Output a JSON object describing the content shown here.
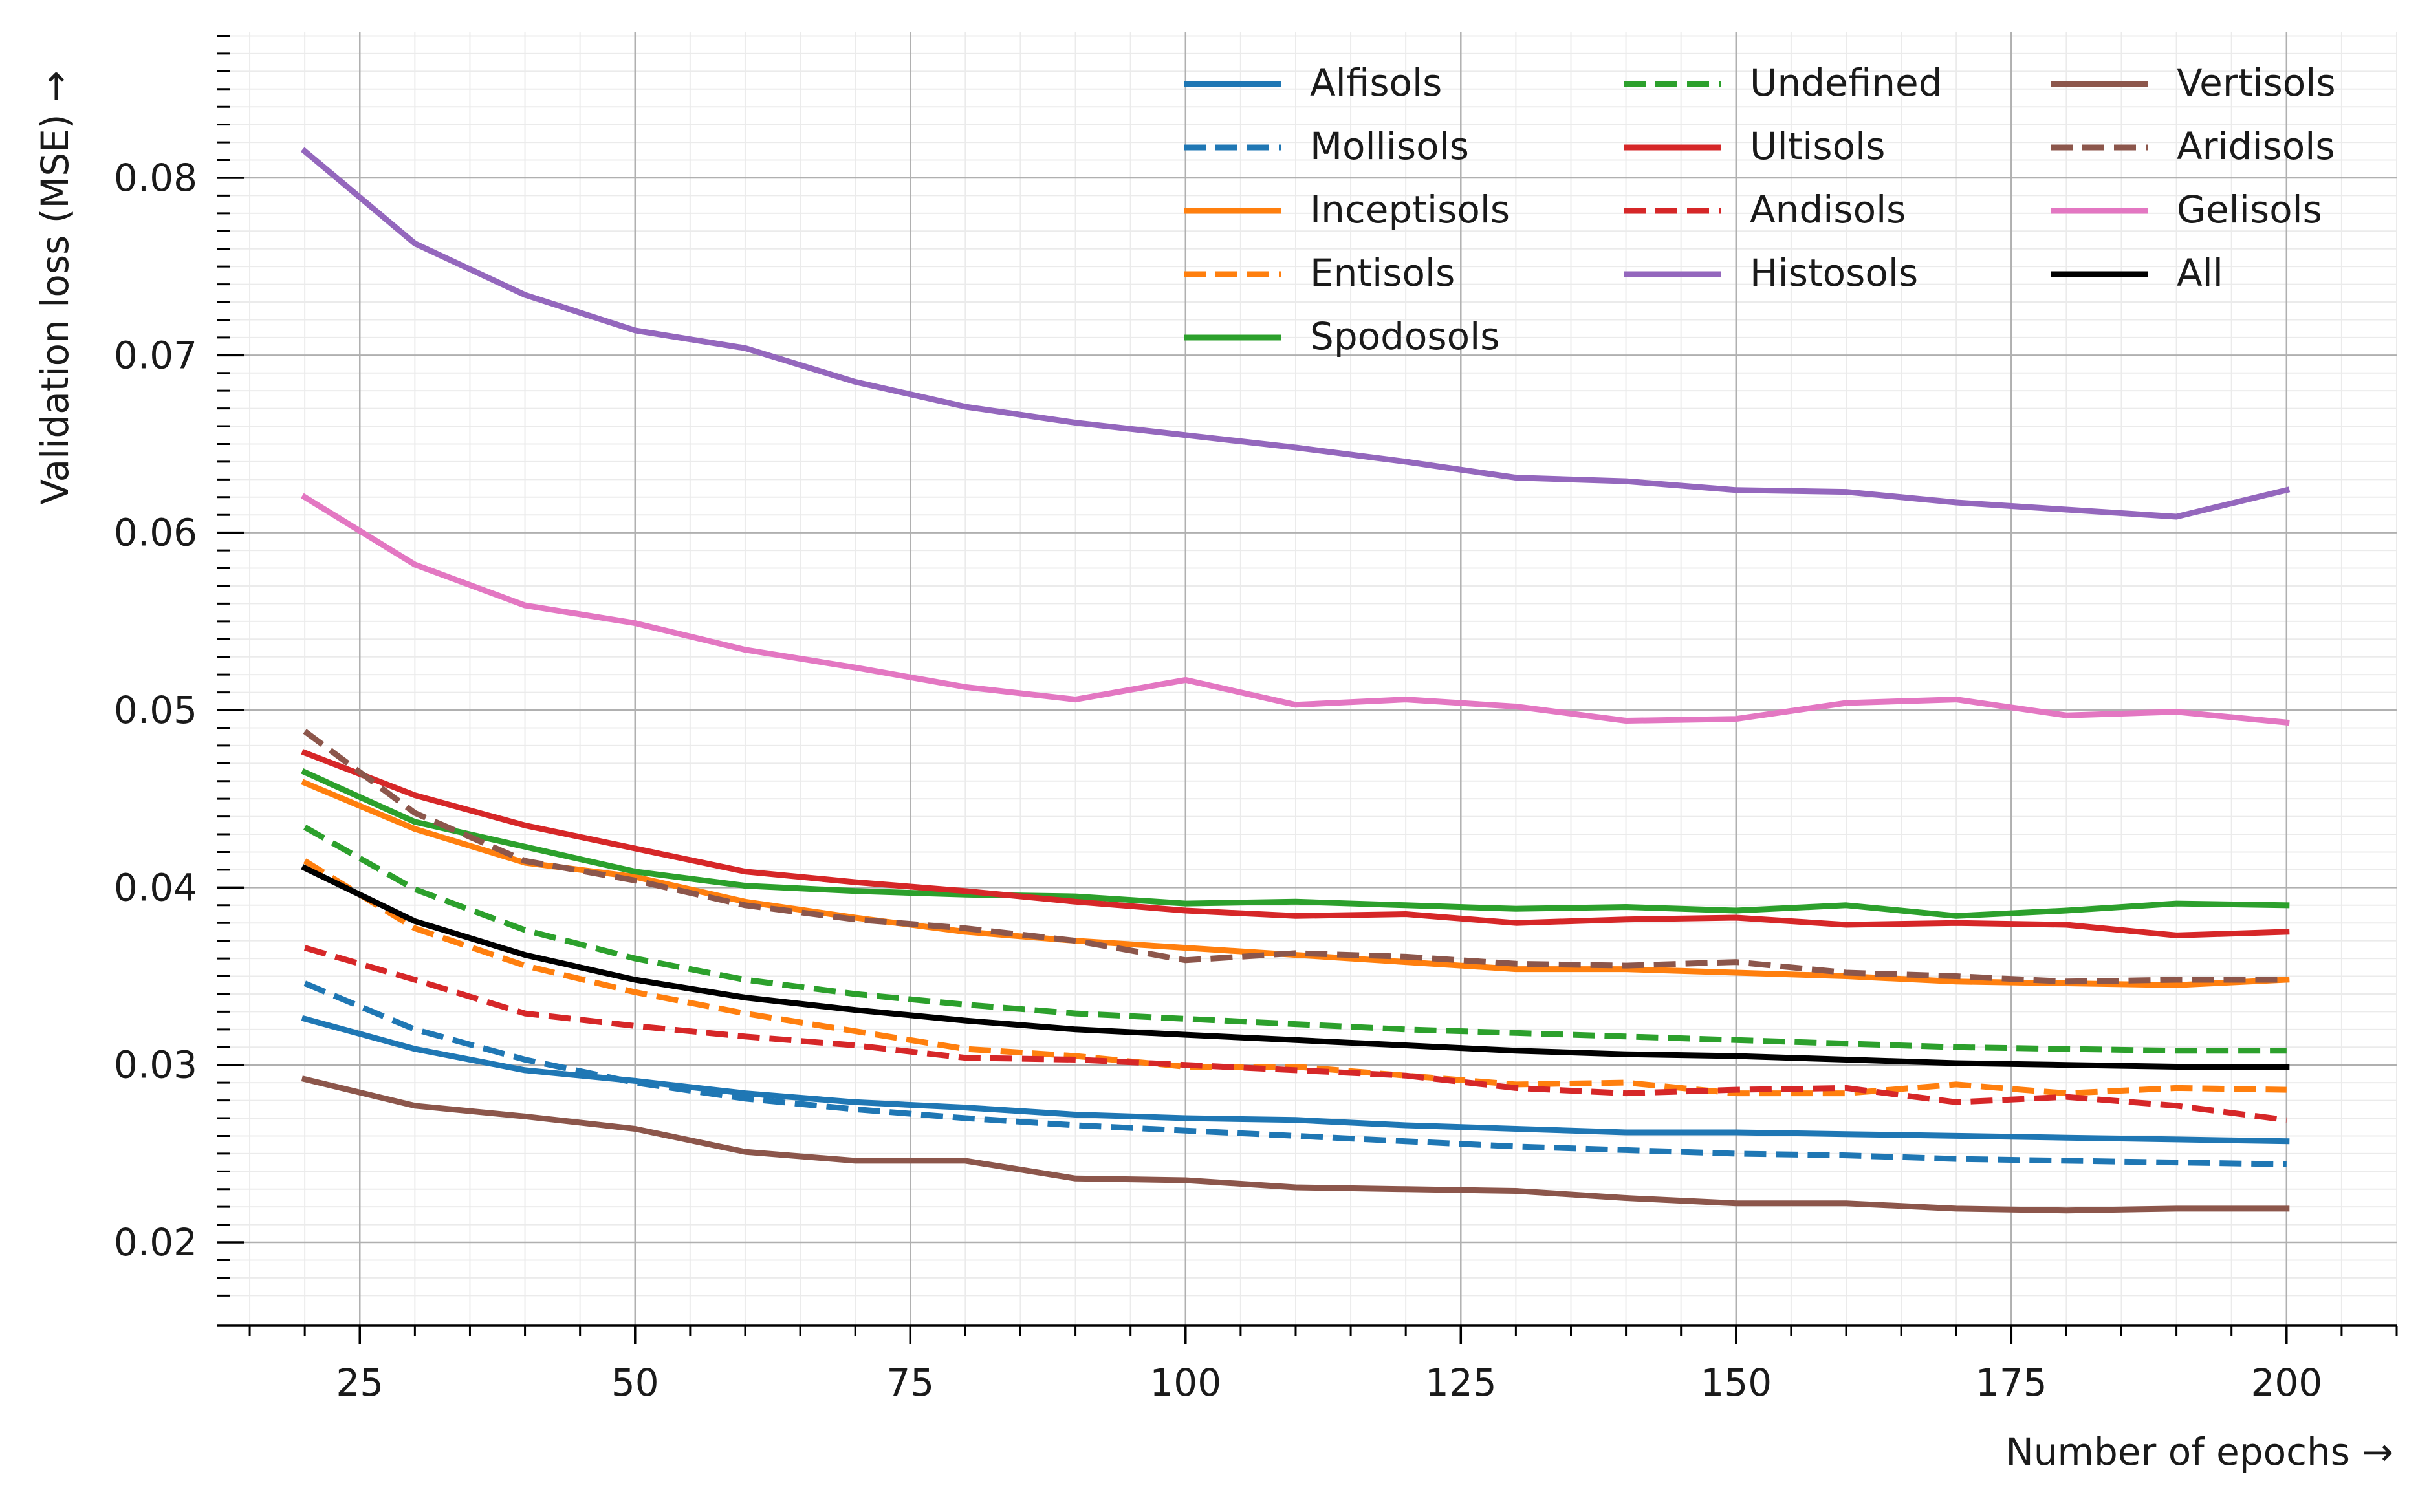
{
  "chart_data": {
    "type": "line",
    "title": "",
    "xlabel": "Number of epochs →",
    "ylabel": "Validation loss (MSE) →",
    "xlim": [
      12,
      210
    ],
    "ylim": [
      0.0153,
      0.0882
    ],
    "xticks": [
      25,
      50,
      75,
      100,
      125,
      150,
      175,
      200
    ],
    "xtick_labels": [
      "25",
      "50",
      "75",
      "100",
      "125",
      "150",
      "175",
      "200"
    ],
    "yticks": [
      0.02,
      0.03,
      0.04,
      0.05,
      0.06,
      0.07,
      0.08
    ],
    "ytick_labels": [
      "0.02",
      "0.03",
      "0.04",
      "0.05",
      "0.06",
      "0.07",
      "0.08"
    ],
    "grid": true,
    "legend_position": "top-right",
    "legend_columns": 3,
    "x": [
      20,
      30,
      40,
      50,
      60,
      70,
      80,
      90,
      100,
      110,
      120,
      130,
      140,
      150,
      160,
      170,
      180,
      190,
      200
    ],
    "series": [
      {
        "name": "Alfisols",
        "color": "#1f77b4",
        "dash": false,
        "values": [
          0.0326,
          0.0309,
          0.0297,
          0.0291,
          0.0284,
          0.0279,
          0.0276,
          0.0272,
          0.027,
          0.0269,
          0.0266,
          0.0264,
          0.0262,
          0.0262,
          0.0261,
          0.026,
          0.0259,
          0.0258,
          0.0257
        ]
      },
      {
        "name": "Mollisols",
        "color": "#1f77b4",
        "dash": true,
        "values": [
          0.0346,
          0.032,
          0.0303,
          0.029,
          0.0281,
          0.0275,
          0.027,
          0.0266,
          0.0263,
          0.026,
          0.0257,
          0.0254,
          0.0252,
          0.025,
          0.0249,
          0.0247,
          0.0246,
          0.0245,
          0.0244
        ]
      },
      {
        "name": "Inceptisols",
        "color": "#ff7f0e",
        "dash": false,
        "values": [
          0.0459,
          0.0433,
          0.0414,
          0.0406,
          0.0392,
          0.0383,
          0.0375,
          0.037,
          0.0366,
          0.0362,
          0.0358,
          0.0354,
          0.0354,
          0.0352,
          0.035,
          0.0347,
          0.0346,
          0.0345,
          0.0348
        ]
      },
      {
        "name": "Entisols",
        "color": "#ff7f0e",
        "dash": true,
        "values": [
          0.0415,
          0.0377,
          0.0356,
          0.0341,
          0.0329,
          0.0319,
          0.0309,
          0.0305,
          0.0299,
          0.0299,
          0.0294,
          0.0289,
          0.029,
          0.0284,
          0.0284,
          0.0289,
          0.0284,
          0.0287,
          0.0286
        ]
      },
      {
        "name": "Spodosols",
        "color": "#2ca02c",
        "dash": false,
        "values": [
          0.0465,
          0.0437,
          0.0423,
          0.0409,
          0.0401,
          0.0398,
          0.0396,
          0.0395,
          0.0391,
          0.0392,
          0.039,
          0.0388,
          0.0389,
          0.0387,
          0.039,
          0.0384,
          0.0387,
          0.0391,
          0.039
        ]
      },
      {
        "name": "Undefined",
        "color": "#2ca02c",
        "dash": true,
        "values": [
          0.0434,
          0.0399,
          0.0376,
          0.036,
          0.0348,
          0.034,
          0.0334,
          0.0329,
          0.0326,
          0.0323,
          0.032,
          0.0318,
          0.0316,
          0.0314,
          0.0312,
          0.031,
          0.0309,
          0.0308,
          0.0308
        ]
      },
      {
        "name": "Ultisols",
        "color": "#d62728",
        "dash": false,
        "values": [
          0.0476,
          0.0452,
          0.0435,
          0.0422,
          0.0409,
          0.0403,
          0.0398,
          0.0392,
          0.0387,
          0.0384,
          0.0385,
          0.038,
          0.0382,
          0.0383,
          0.0379,
          0.038,
          0.0379,
          0.0373,
          0.0375
        ]
      },
      {
        "name": "Andisols",
        "color": "#d62728",
        "dash": true,
        "values": [
          0.0366,
          0.0348,
          0.0329,
          0.0322,
          0.0316,
          0.0311,
          0.0304,
          0.0303,
          0.03,
          0.0297,
          0.0294,
          0.0287,
          0.0284,
          0.0286,
          0.0287,
          0.0279,
          0.0282,
          0.0277,
          0.0269
        ]
      },
      {
        "name": "Histosols",
        "color": "#9467bd",
        "dash": false,
        "values": [
          0.0815,
          0.0763,
          0.0734,
          0.0714,
          0.0704,
          0.0685,
          0.0671,
          0.0662,
          0.0655,
          0.0648,
          0.064,
          0.0631,
          0.0629,
          0.0624,
          0.0623,
          0.0617,
          0.0613,
          0.0609,
          0.0624
        ]
      },
      {
        "name": "Vertisols",
        "color": "#8c564b",
        "dash": false,
        "values": [
          0.0292,
          0.0277,
          0.0271,
          0.0264,
          0.0251,
          0.0246,
          0.0246,
          0.0236,
          0.0235,
          0.0231,
          0.023,
          0.0229,
          0.0225,
          0.0222,
          0.0222,
          0.0219,
          0.0218,
          0.0219,
          0.0219
        ]
      },
      {
        "name": "Aridisols",
        "color": "#8c564b",
        "dash": true,
        "values": [
          0.0488,
          0.0442,
          0.0415,
          0.0404,
          0.039,
          0.0382,
          0.0377,
          0.037,
          0.0359,
          0.0363,
          0.0361,
          0.0357,
          0.0356,
          0.0358,
          0.0352,
          0.035,
          0.0347,
          0.0348,
          0.0348
        ]
      },
      {
        "name": "Gelisols",
        "color": "#e377c2",
        "dash": false,
        "values": [
          0.062,
          0.0582,
          0.0559,
          0.0549,
          0.0534,
          0.0524,
          0.0513,
          0.0506,
          0.0517,
          0.0503,
          0.0506,
          0.0502,
          0.0494,
          0.0495,
          0.0504,
          0.0506,
          0.0497,
          0.0499,
          0.0493
        ]
      },
      {
        "name": "All",
        "color": "#000000",
        "dash": false,
        "values": [
          0.0411,
          0.0381,
          0.0362,
          0.0348,
          0.0338,
          0.0331,
          0.0325,
          0.032,
          0.0317,
          0.0314,
          0.0311,
          0.0308,
          0.0306,
          0.0305,
          0.0303,
          0.0301,
          0.03,
          0.0299,
          0.0299
        ]
      }
    ]
  }
}
